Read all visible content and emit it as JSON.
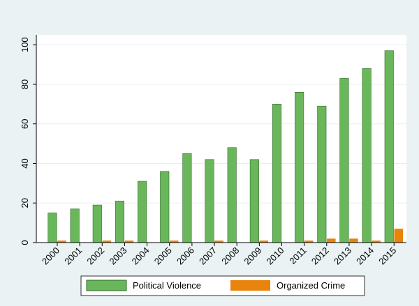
{
  "chart_data": {
    "type": "bar",
    "categories": [
      "2000",
      "2001",
      "2002",
      "2003",
      "2004",
      "2005",
      "2006",
      "2007",
      "2008",
      "2009",
      "2010",
      "2011",
      "2012",
      "2013",
      "2014",
      "2015"
    ],
    "series": [
      {
        "name": "Political Violence",
        "color": "#6ab65a",
        "stroke": "#2f6b2a",
        "values": [
          15,
          17,
          19,
          21,
          31,
          36,
          45,
          42,
          48,
          42,
          70,
          76,
          69,
          83,
          88,
          97
        ]
      },
      {
        "name": "Organized Crime",
        "color": "#e8830c",
        "stroke": "#e8830c",
        "values": [
          1,
          0,
          1,
          1,
          0,
          1,
          0,
          1,
          0,
          1,
          0,
          1,
          2,
          2,
          1,
          7
        ]
      }
    ],
    "yticks": [
      "0",
      "20",
      "40",
      "60",
      "80",
      "100"
    ],
    "ylim": [
      0,
      105
    ],
    "grid": true,
    "legend_position": "bottom",
    "colors": {
      "page_background": "#eaf2f3",
      "plot_background": "#ffffff",
      "grid": "#e8eef0"
    }
  }
}
